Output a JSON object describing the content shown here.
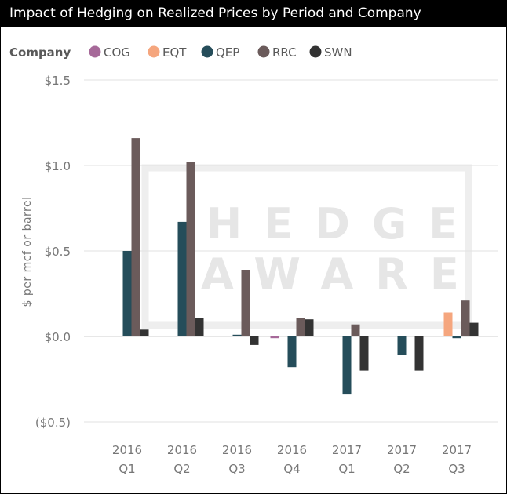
{
  "title": "Impact of Hedging on Realized Prices by Period and Company",
  "watermark": {
    "line1": "HEDGE",
    "line2": "AWARE"
  },
  "chart_data": {
    "type": "bar",
    "title": "Impact of Hedging on Realized Prices by Period and Company",
    "xlabel": "",
    "ylabel": "$ per mcf or barrel",
    "ylim": [
      -0.5,
      1.5
    ],
    "yticks": [
      1.5,
      1.0,
      0.5,
      0.0,
      -0.5
    ],
    "ytick_labels": [
      "$1.5",
      "$1.0",
      "$0.5",
      "$0.0",
      "($0.5)"
    ],
    "grid": true,
    "legend_position": "top-left",
    "legend_title": "Company",
    "categories": [
      [
        "2016",
        "Q1"
      ],
      [
        "2016",
        "Q2"
      ],
      [
        "2016",
        "Q3"
      ],
      [
        "2016",
        "Q4"
      ],
      [
        "2017",
        "Q1"
      ],
      [
        "2017",
        "Q2"
      ],
      [
        "2017",
        "Q3"
      ]
    ],
    "series": [
      {
        "name": "COG",
        "color": "#a66999",
        "values": [
          0,
          0,
          0,
          -0.01,
          0,
          0,
          0
        ]
      },
      {
        "name": "EQT",
        "color": "#f5a67e",
        "values": [
          0,
          0,
          0,
          0,
          0,
          0,
          0.14
        ]
      },
      {
        "name": "QEP",
        "color": "#254d5a",
        "values": [
          0.5,
          0.67,
          0.01,
          -0.18,
          -0.34,
          -0.11,
          -0.01
        ]
      },
      {
        "name": "RRC",
        "color": "#6b5b5b",
        "values": [
          1.16,
          1.02,
          0.39,
          0.11,
          0.07,
          0,
          0.21
        ]
      },
      {
        "name": "SWN",
        "color": "#333333",
        "values": [
          0.04,
          0.11,
          -0.05,
          0.1,
          -0.2,
          -0.2,
          0.08
        ]
      }
    ]
  }
}
